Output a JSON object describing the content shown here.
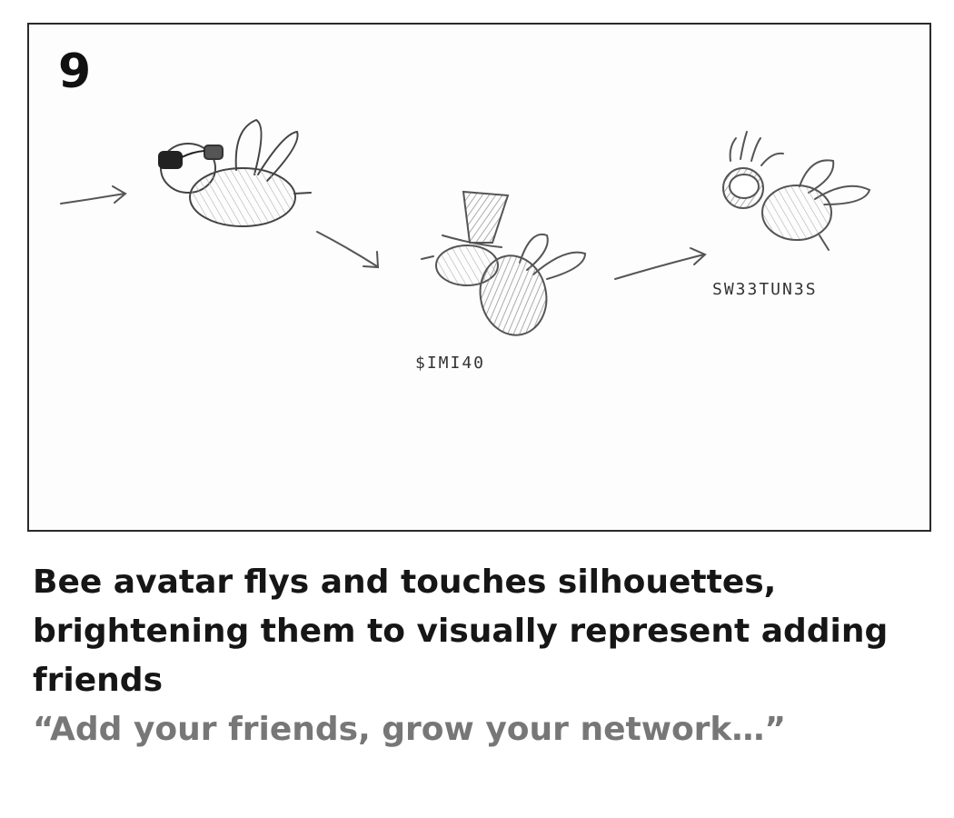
{
  "panel": {
    "number": "9"
  },
  "sketch": {
    "labels": {
      "friend_one": "$IMI40",
      "friend_two": "SW33TUN3S"
    },
    "icons": [
      "arrow-icon",
      "bee-avatar-sunglasses-icon",
      "bee-silhouette-top-hat-icon",
      "bee-silhouette-hair-icon"
    ]
  },
  "caption": {
    "description": "Bee avatar flys and touches silhouettes, brightening them to visually represent adding friends",
    "quote": "“Add your friends, grow your network…”"
  }
}
